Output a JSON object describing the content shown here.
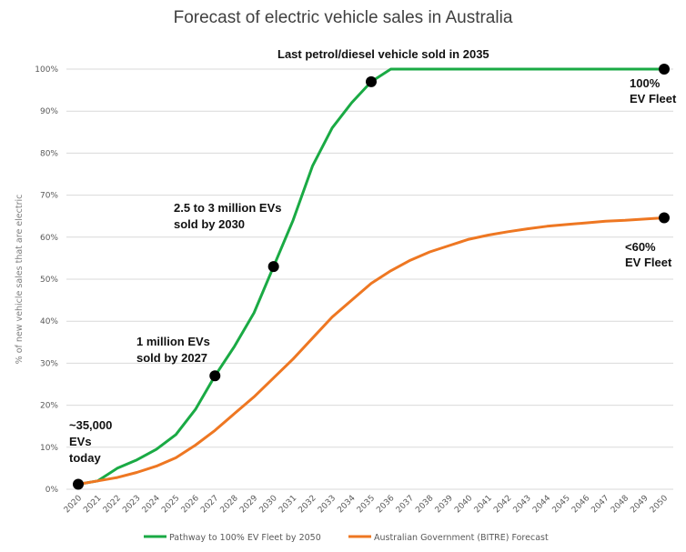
{
  "chart_data": {
    "type": "line",
    "title": "Forecast of electric vehicle sales in Australia",
    "xlabel": "",
    "ylabel": "% of new vehicle sales that are electric",
    "ylim": [
      0,
      100
    ],
    "ytick_step": 10,
    "y_tick_labels": [
      "0%",
      "10%",
      "20%",
      "30%",
      "40%",
      "50%",
      "60%",
      "70%",
      "80%",
      "90%",
      "100%"
    ],
    "grid": true,
    "legend_position": "bottom",
    "x": [
      "2020",
      "2021",
      "2022",
      "2023",
      "2024",
      "2025",
      "2026",
      "2027",
      "2028",
      "2029",
      "2030",
      "2031",
      "2032",
      "2033",
      "2034",
      "2035",
      "2036",
      "2037",
      "2038",
      "2039",
      "2040",
      "2041",
      "2042",
      "2043",
      "2044",
      "2045",
      "2046",
      "2047",
      "2048",
      "2049",
      "2050"
    ],
    "series": [
      {
        "name": "Pathway to 100% EV Fleet by 2050",
        "color": "#1aaa44",
        "values": [
          1.2,
          2,
          5,
          7,
          9.5,
          13,
          19,
          27,
          34,
          42,
          53,
          64,
          77,
          86,
          92,
          97,
          100,
          100,
          100,
          100,
          100,
          100,
          100,
          100,
          100,
          100,
          100,
          100,
          100,
          100,
          100
        ]
      },
      {
        "name": "Australian Government (BITRE) Forecast",
        "color": "#ee7722",
        "values": [
          1.2,
          2,
          2.8,
          4,
          5.5,
          7.5,
          10.5,
          14,
          18,
          22,
          26.5,
          31,
          36,
          41,
          45,
          49,
          52,
          54.5,
          56.5,
          58,
          59.5,
          60.5,
          61.3,
          62,
          62.6,
          63,
          63.4,
          63.8,
          64,
          64.3,
          64.6
        ]
      }
    ],
    "markers": [
      {
        "x": "2020",
        "y": 1.2
      },
      {
        "x": "2027",
        "y": 27
      },
      {
        "x": "2030",
        "y": 53
      },
      {
        "x": "2035",
        "y": 97
      },
      {
        "x": "2050",
        "y": 100
      },
      {
        "x": "2050",
        "y": 64.6
      }
    ],
    "annotations": [
      {
        "id": "today",
        "lines": [
          "~35,000",
          "EVs",
          "today"
        ]
      },
      {
        "id": "2027",
        "lines": [
          "1 million EVs",
          "sold by 2027"
        ]
      },
      {
        "id": "2030",
        "lines": [
          "2.5 to 3 million EVs",
          "sold by 2030"
        ]
      },
      {
        "id": "2035",
        "lines": [
          "Last petrol/diesel vehicle sold in 2035"
        ]
      },
      {
        "id": "full",
        "lines": [
          "100%",
          "EV Fleet"
        ]
      },
      {
        "id": "bitre",
        "lines": [
          "<60%",
          "EV Fleet"
        ]
      }
    ]
  }
}
